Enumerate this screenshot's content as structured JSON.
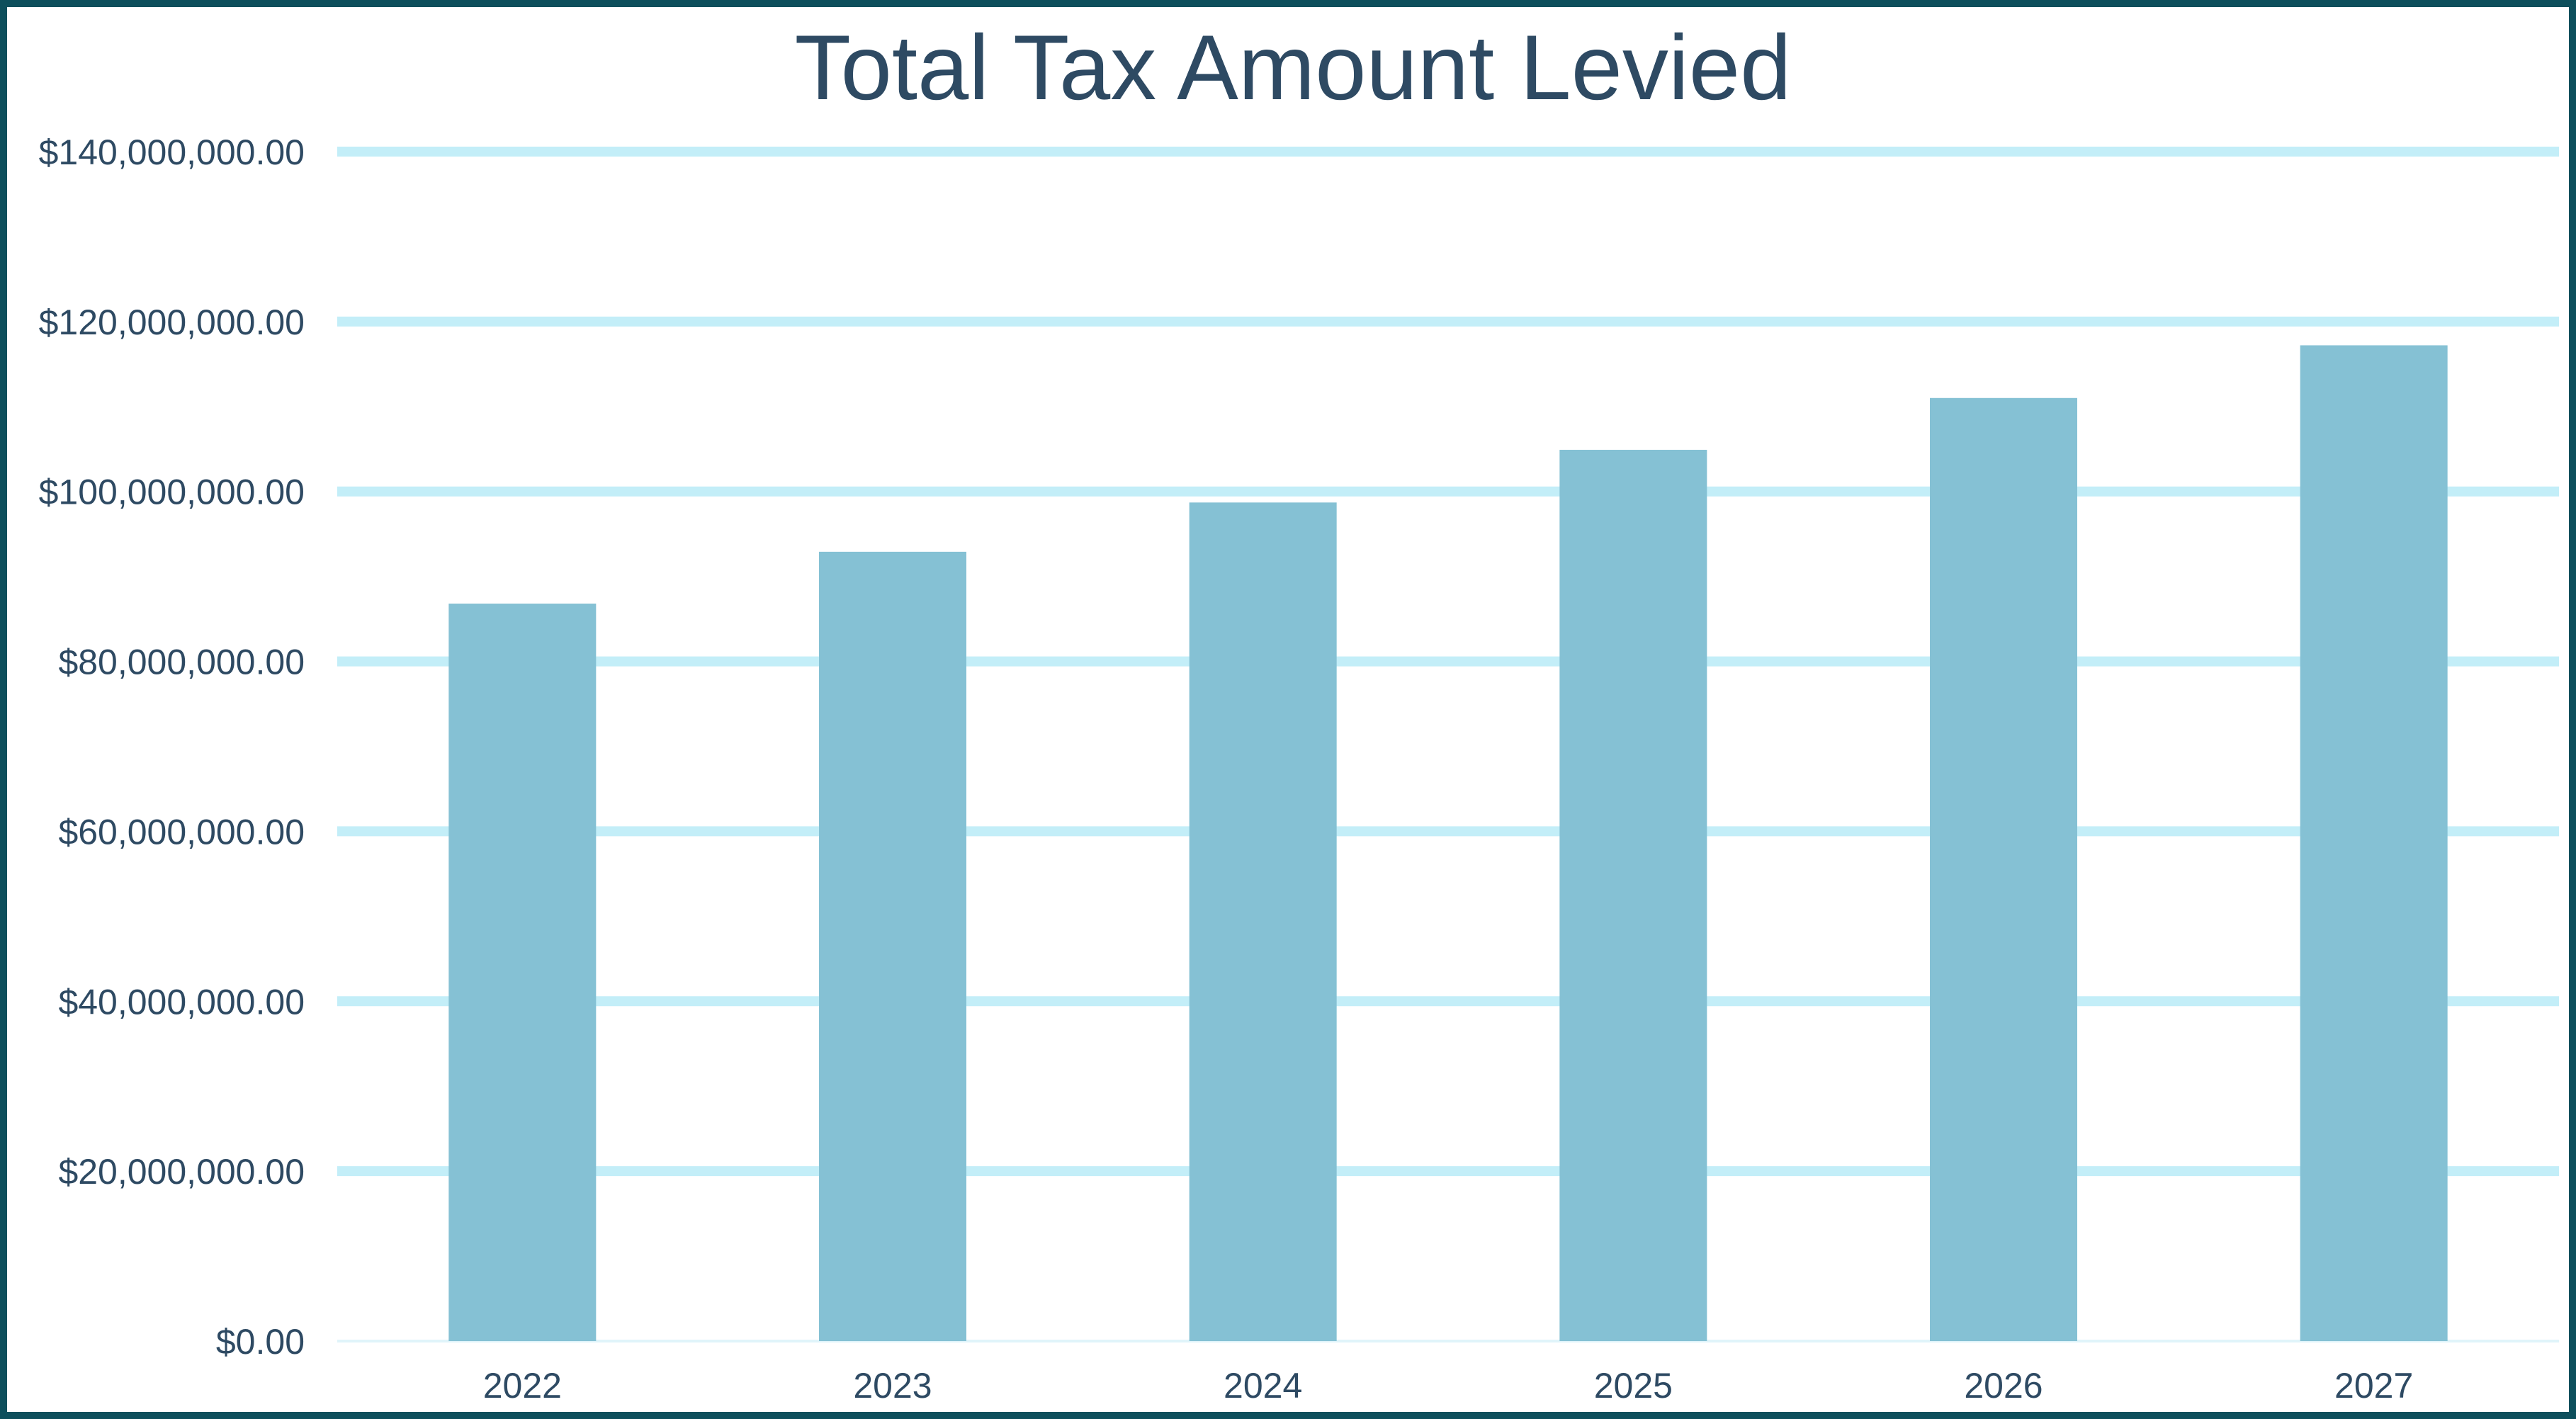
{
  "chart_data": {
    "type": "bar",
    "title": "Total Tax Amount Levied",
    "xlabel": "",
    "ylabel": "",
    "categories": [
      "2022",
      "2023",
      "2024",
      "2025",
      "2026",
      "2027"
    ],
    "values": [
      86800000,
      92900000,
      98700000,
      104900000,
      111000000,
      117200000
    ],
    "ylim": [
      0,
      140000000
    ],
    "yticks": [
      0,
      20000000,
      40000000,
      60000000,
      80000000,
      100000000,
      120000000,
      140000000
    ],
    "ytick_labels": [
      "$0.00",
      "$20,000,000.00",
      "$40,000,000.00",
      "$60,000,000.00",
      "$80,000,000.00",
      "$100,000,000.00",
      "$120,000,000.00",
      "$140,000,000.00"
    ],
    "grid": true,
    "legend": "none",
    "colors": {
      "bar": "#85c1d4",
      "gridline": "#c3eef8",
      "text": "#2e4a63",
      "border": "#0d4f5c"
    }
  }
}
